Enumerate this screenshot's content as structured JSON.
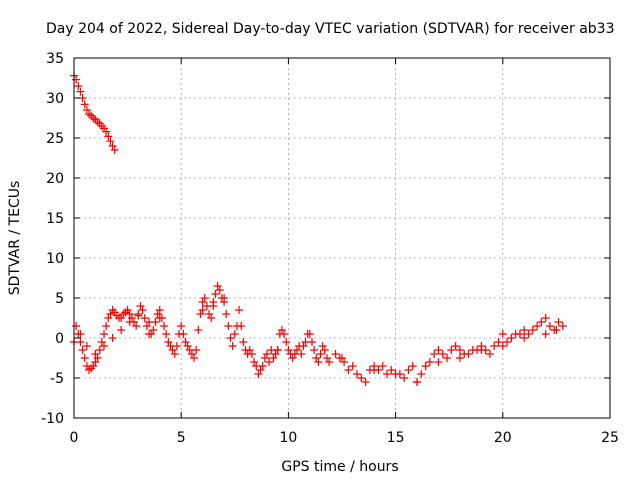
{
  "chart_data": {
    "type": "scatter",
    "title": "Day 204 of 2022, Sidereal Day-to-day VTEC variation (SDTVAR) for receiver ab33",
    "xlabel": "GPS time / hours",
    "ylabel": "SDTVAR / TECUs",
    "xlim": [
      0,
      25
    ],
    "ylim": [
      -10,
      35
    ],
    "xticks": [
      "0",
      "5",
      "10",
      "15",
      "20",
      "25"
    ],
    "yticks": [
      "-10",
      "-5",
      "0",
      "5",
      "10",
      "15",
      "20",
      "25",
      "30",
      "35"
    ],
    "grid": true,
    "marker": "+",
    "color": "#ff0000",
    "series": [
      {
        "name": "SDTVAR",
        "x": [
          0.0,
          0.1,
          0.2,
          0.3,
          0.4,
          0.5,
          0.6,
          0.7,
          0.8,
          0.9,
          1.0,
          1.1,
          1.2,
          1.3,
          1.4,
          1.5,
          1.6,
          1.7,
          1.8,
          1.9,
          0.0,
          0.1,
          0.2,
          0.3,
          0.4,
          0.5,
          0.6,
          0.7,
          0.8,
          0.9,
          1.0,
          1.1,
          1.2,
          1.3,
          1.4,
          1.5,
          1.6,
          1.7,
          1.8,
          1.9,
          2.0,
          2.1,
          2.2,
          2.3,
          2.4,
          2.5,
          2.6,
          2.7,
          2.8,
          2.9,
          3.0,
          3.1,
          3.2,
          3.3,
          3.4,
          3.5,
          3.6,
          3.7,
          3.8,
          3.9,
          4.0,
          4.1,
          4.2,
          4.3,
          4.4,
          4.5,
          4.6,
          4.7,
          4.8,
          4.9,
          5.0,
          5.1,
          5.2,
          5.3,
          5.4,
          5.5,
          5.6,
          5.7,
          5.8,
          5.9,
          6.0,
          6.1,
          6.2,
          6.3,
          6.4,
          6.5,
          6.6,
          6.7,
          6.8,
          6.9,
          7.0,
          7.1,
          7.2,
          7.3,
          7.4,
          7.5,
          7.6,
          7.7,
          7.8,
          7.9,
          8.0,
          8.1,
          8.2,
          8.3,
          8.4,
          8.5,
          8.6,
          8.7,
          8.8,
          8.9,
          9.0,
          9.1,
          9.2,
          9.3,
          9.4,
          9.5,
          9.6,
          9.7,
          9.8,
          9.9,
          10.0,
          10.1,
          10.2,
          10.3,
          10.4,
          10.5,
          10.6,
          10.7,
          10.8,
          10.9,
          11.0,
          11.1,
          11.2,
          11.3,
          11.4,
          11.5,
          11.6,
          11.7,
          11.8,
          11.9,
          12.2,
          12.4,
          12.6,
          12.8,
          13.0,
          13.2,
          13.4,
          13.6,
          13.8,
          14.0,
          14.2,
          14.4,
          14.6,
          14.8,
          15.0,
          15.2,
          15.4,
          15.6,
          15.8,
          16.0,
          16.2,
          16.4,
          16.6,
          16.8,
          17.0,
          17.2,
          17.4,
          17.6,
          17.8,
          18.0,
          18.2,
          18.4,
          18.6,
          18.8,
          19.0,
          19.2,
          19.4,
          19.6,
          19.8,
          20.0,
          20.2,
          20.4,
          20.6,
          20.8,
          21.0,
          21.2,
          21.4,
          21.6,
          21.8,
          22.0,
          22.2,
          22.4,
          22.6,
          22.8,
          0.3,
          0.6,
          1.0,
          1.4,
          1.8,
          2.2,
          2.6,
          3.0,
          3.5,
          4.0,
          6.0,
          6.5,
          7.0,
          9.5,
          12.5,
          14.0,
          16.0,
          17.0,
          18.0,
          19.0,
          20.0,
          21.0,
          22.0,
          22.5
        ],
        "y": [
          32.8,
          32.3,
          31.5,
          30.8,
          30.0,
          29.2,
          28.5,
          28.0,
          27.8,
          27.5,
          27.3,
          27.0,
          26.8,
          26.5,
          26.2,
          25.8,
          25.2,
          24.6,
          24.0,
          23.5,
          -0.5,
          1.5,
          0.5,
          -0.5,
          -1.5,
          -2.5,
          -3.5,
          -4.0,
          -3.8,
          -3.5,
          -3.0,
          -2.5,
          -1.5,
          -0.5,
          0.5,
          1.5,
          2.5,
          3.0,
          3.5,
          3.2,
          2.8,
          2.5,
          2.5,
          3.0,
          3.2,
          3.5,
          3.0,
          2.5,
          2.0,
          1.5,
          3.0,
          4.0,
          3.5,
          2.5,
          1.5,
          0.5,
          0.5,
          1.0,
          2.0,
          3.0,
          3.5,
          2.5,
          1.5,
          0.5,
          -0.5,
          -1.0,
          -1.5,
          -2.0,
          -1.0,
          0.5,
          1.5,
          0.5,
          -0.5,
          -1.0,
          -1.5,
          -2.0,
          -2.5,
          -1.5,
          1.0,
          3.0,
          4.5,
          5.0,
          4.0,
          3.0,
          2.5,
          4.0,
          5.5,
          6.5,
          6.0,
          5.0,
          4.5,
          3.0,
          1.5,
          0.0,
          -1.0,
          0.5,
          1.5,
          3.5,
          1.5,
          -0.5,
          -1.5,
          -2.0,
          -1.5,
          -2.0,
          -3.0,
          -3.5,
          -4.5,
          -4.0,
          -3.5,
          -2.5,
          -2.0,
          -3.0,
          -1.5,
          -2.5,
          -2.0,
          -1.5,
          0.5,
          1.0,
          0.5,
          -0.5,
          -1.5,
          -2.0,
          -2.5,
          -2.0,
          -1.5,
          -1.0,
          -2.0,
          -1.0,
          -0.5,
          0.5,
          0.5,
          -0.5,
          -1.5,
          -2.5,
          -3.0,
          -2.0,
          -1.0,
          -1.5,
          -2.5,
          -3.0,
          -2.0,
          -2.5,
          -3.0,
          -4.0,
          -3.5,
          -4.5,
          -5.0,
          -5.5,
          -4.0,
          -3.5,
          -4.0,
          -3.5,
          -4.5,
          -4.0,
          -4.5,
          -4.5,
          -5.0,
          -4.0,
          -3.5,
          -5.5,
          -4.5,
          -3.5,
          -3.0,
          -2.0,
          -1.5,
          -2.0,
          -2.5,
          -1.5,
          -1.0,
          -1.5,
          -2.0,
          -2.0,
          -1.5,
          -1.5,
          -1.0,
          -1.5,
          -2.0,
          -1.0,
          -0.5,
          -1.0,
          -0.5,
          0.0,
          0.5,
          0.5,
          1.0,
          0.5,
          1.0,
          1.5,
          2.0,
          2.5,
          1.5,
          1.0,
          2.0,
          1.5,
          0.5,
          -1.0,
          -2.0,
          -1.0,
          0.0,
          1.0,
          2.0,
          2.8,
          2.0,
          2.5,
          3.5,
          4.5,
          5.0,
          -1.5,
          -2.5,
          -4.0,
          -5.5,
          -3.0,
          -2.5,
          -1.5,
          0.5,
          0.0,
          0.5,
          1.0
        ]
      }
    ]
  }
}
